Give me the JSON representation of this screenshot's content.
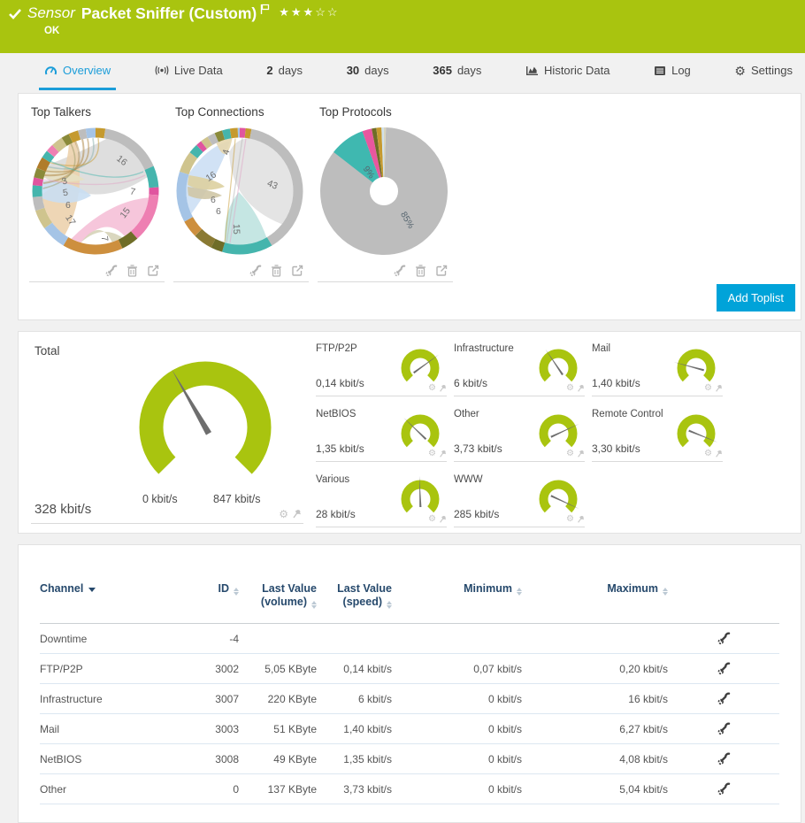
{
  "colors": {
    "header_green": "#a9c40f",
    "gauge_green": "#a9c40f",
    "accent_blue": "#1b9dd9",
    "button_blue": "#00a3d9",
    "table_header_blue": "#26496c"
  },
  "header": {
    "kind_label": "Sensor",
    "title": "Packet Sniffer (Custom)",
    "status": "OK",
    "rating_stars": "★★★☆☆"
  },
  "tabs": [
    {
      "label": "Overview"
    },
    {
      "label": "Live Data"
    },
    {
      "num": "2",
      "label": "days"
    },
    {
      "num": "30",
      "label": "days"
    },
    {
      "num": "365",
      "label": "days"
    },
    {
      "label": "Historic Data"
    },
    {
      "label": "Log"
    },
    {
      "label": "Settings"
    }
  ],
  "toplists": {
    "add_button": "Add Toplist",
    "charts": [
      {
        "title": "Top Talkers",
        "type": "chord",
        "ring": [
          {
            "frac": 0.025,
            "color": "#c59a2f"
          },
          {
            "frac": 0.16,
            "color": "#bdbdbd"
          },
          {
            "frac": 0.055,
            "color": "#45b5ad"
          },
          {
            "frac": 0.02,
            "color": "#e0559f"
          },
          {
            "frac": 0.125,
            "color": "#ee7fb2"
          },
          {
            "frac": 0.045,
            "color": "#6f6d28"
          },
          {
            "frac": 0.155,
            "color": "#cd8f3e"
          },
          {
            "frac": 0.065,
            "color": "#a5c4e6"
          },
          {
            "frac": 0.05,
            "color": "#cfc48e"
          },
          {
            "frac": 0.035,
            "color": "#bdbdbd"
          },
          {
            "frac": 0.03,
            "color": "#45b5ad"
          },
          {
            "frac": 0.02,
            "color": "#e0559f"
          },
          {
            "frac": 0.025,
            "color": "#8a8a3a"
          },
          {
            "frac": 0.03,
            "color": "#b07c2a"
          },
          {
            "frac": 0.02,
            "color": "#45b5ad"
          },
          {
            "frac": 0.02,
            "color": "#ee7fb2"
          },
          {
            "frac": 0.03,
            "color": "#cfc48e"
          },
          {
            "frac": 0.02,
            "color": "#8a8a3a"
          },
          {
            "frac": 0.025,
            "color": "#c59a2f"
          },
          {
            "frac": 0.02,
            "color": "#bdbdbd"
          },
          {
            "frac": 0.025,
            "color": "#a5c4e6"
          }
        ],
        "chords": [
          "#dcdcdc",
          "#f6c3d9",
          "#ecd2ad",
          "#d6d3b8",
          "#c9def2",
          "#e7e0c2"
        ],
        "strands": [
          "#b08a4a",
          "#b08a4a",
          "#8fb5b1",
          "#c59a2f",
          "#b08a4a",
          "#9b9b6a",
          "#45b5ad",
          "#e0a5c6"
        ],
        "labels": [
          "16",
          "7",
          "15",
          "7",
          "17",
          "6",
          "5",
          "3"
        ]
      },
      {
        "title": "Top Connections",
        "type": "chord",
        "ring": [
          {
            "frac": 0.015,
            "color": "#e0559f"
          },
          {
            "frac": 0.015,
            "color": "#c59a2f"
          },
          {
            "frac": 0.385,
            "color": "#bdbdbd"
          },
          {
            "frac": 0.13,
            "color": "#45b5ad"
          },
          {
            "frac": 0.03,
            "color": "#6f6d28"
          },
          {
            "frac": 0.05,
            "color": "#8a7a33"
          },
          {
            "frac": 0.045,
            "color": "#cd8f3e"
          },
          {
            "frac": 0.13,
            "color": "#a5c4e6"
          },
          {
            "frac": 0.055,
            "color": "#cfc48e"
          },
          {
            "frac": 0.025,
            "color": "#45b5ad"
          },
          {
            "frac": 0.015,
            "color": "#e0559f"
          },
          {
            "frac": 0.02,
            "color": "#cfc48e"
          },
          {
            "frac": 0.02,
            "color": "#bdbdbd"
          },
          {
            "frac": 0.02,
            "color": "#8a8a3a"
          },
          {
            "frac": 0.02,
            "color": "#45b5ad"
          },
          {
            "frac": 0.02,
            "color": "#c59a2f"
          },
          {
            "frac": 0.005,
            "color": "#a5c4e6"
          }
        ],
        "chords": [
          "#e3e3e3",
          "#cfe0f4",
          "#c2e5e2",
          "#e6d7ae",
          "#ddd0a0",
          "#cfc6a6"
        ],
        "strands": [
          "#bdbdbd",
          "#e0a5c6",
          "#c59a2f"
        ],
        "labels": [
          "43",
          "16",
          "15",
          "4",
          "6",
          "6"
        ]
      },
      {
        "title": "Top Protocols",
        "type": "donut",
        "slices": [
          {
            "frac": 0.005,
            "color": "#d8d4bd"
          },
          {
            "frac": 0.85,
            "color": "#bdbdbd",
            "label": "85%"
          },
          {
            "frac": 0.09,
            "color": "#3fb8b0",
            "label": "9%"
          },
          {
            "frac": 0.024,
            "color": "#e8579f"
          },
          {
            "frac": 0.012,
            "color": "#6f6d28"
          },
          {
            "frac": 0.013,
            "color": "#c59a2f"
          },
          {
            "frac": 0.006,
            "color": "#cfe0ea"
          }
        ]
      }
    ]
  },
  "gauges": {
    "total": {
      "label": "Total",
      "value": "328 kbit/s",
      "min_label": "0 kbit/s",
      "max_label": "847 kbit/s",
      "needle_deg": -30
    },
    "channels": [
      {
        "label": "FTP/P2P",
        "value": "0,14 kbit/s",
        "needle_deg": 54
      },
      {
        "label": "Infrastructure",
        "value": "6 kbit/s",
        "needle_deg": -34
      },
      {
        "label": "Mail",
        "value": "1,40 kbit/s",
        "needle_deg": -75
      },
      {
        "label": "NetBIOS",
        "value": "1,35 kbit/s",
        "needle_deg": -46
      },
      {
        "label": "Other",
        "value": "3,73 kbit/s",
        "needle_deg": 65
      },
      {
        "label": "Remote Control",
        "value": "3,30 kbit/s",
        "needle_deg": 112
      },
      {
        "label": "Various",
        "value": "28 kbit/s",
        "needle_deg": -2
      },
      {
        "label": "WWW",
        "value": "285 kbit/s",
        "needle_deg": 115
      }
    ]
  },
  "table": {
    "headers": {
      "channel": "Channel",
      "id": "ID",
      "volume": "Last Value (volume)",
      "speed": "Last Value (speed)",
      "min": "Minimum",
      "max": "Maximum"
    },
    "rows": [
      {
        "channel": "Downtime",
        "id": "-4",
        "volume": "",
        "speed": "",
        "min": "",
        "max": ""
      },
      {
        "channel": "FTP/P2P",
        "id": "3002",
        "volume": "5,05 KByte",
        "speed": "0,14 kbit/s",
        "min": "0,07 kbit/s",
        "max": "0,20 kbit/s"
      },
      {
        "channel": "Infrastructure",
        "id": "3007",
        "volume": "220 KByte",
        "speed": "6 kbit/s",
        "min": "0 kbit/s",
        "max": "16 kbit/s"
      },
      {
        "channel": "Mail",
        "id": "3003",
        "volume": "51 KByte",
        "speed": "1,40 kbit/s",
        "min": "0 kbit/s",
        "max": "6,27 kbit/s"
      },
      {
        "channel": "NetBIOS",
        "id": "3008",
        "volume": "49 KByte",
        "speed": "1,35 kbit/s",
        "min": "0 kbit/s",
        "max": "4,08 kbit/s"
      },
      {
        "channel": "Other",
        "id": "0",
        "volume": "137 KByte",
        "speed": "3,73 kbit/s",
        "min": "0 kbit/s",
        "max": "5,04 kbit/s"
      }
    ]
  }
}
